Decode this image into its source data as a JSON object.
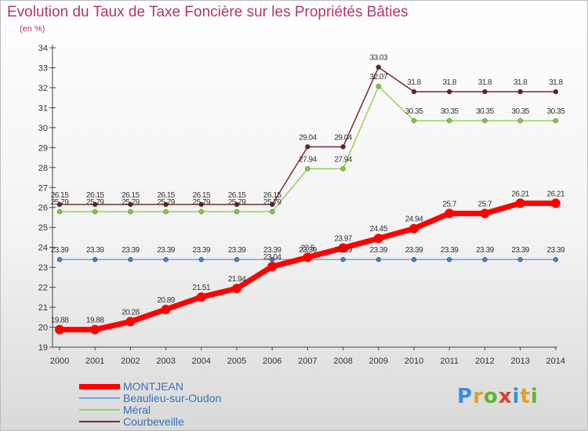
{
  "title": "Evolution du Taux de Taxe Foncière sur les Propriétés Bâties",
  "subtitle": "(en %)",
  "logo": {
    "text": "Proxiti",
    "colors": [
      "#3a8fd9",
      "#e0a020",
      "#5cb82e",
      "#e03b2e",
      "#3a8fd9",
      "#e0a020",
      "#5cb82e"
    ]
  },
  "chart_data": {
    "type": "line",
    "title": "Evolution du Taux de Taxe Foncière sur les Propriétés Bâties",
    "ylabel": "(en %)",
    "xlabel": "",
    "grid": false,
    "ylim": [
      19,
      34
    ],
    "yticks": [
      19,
      20,
      21,
      22,
      23,
      24,
      25,
      26,
      27,
      28,
      29,
      30,
      31,
      32,
      33,
      34
    ],
    "categories": [
      "2000",
      "2001",
      "2002",
      "2003",
      "2004",
      "2005",
      "2006",
      "2007",
      "2008",
      "2009",
      "2010",
      "2011",
      "2012",
      "2013",
      "2014"
    ],
    "series": [
      {
        "name": "Courbeveille",
        "color": "#7a2a2e",
        "marker": "#6a1f24",
        "values": [
          26.15,
          26.15,
          26.15,
          26.15,
          26.15,
          26.15,
          26.15,
          29.04,
          29.04,
          33.03,
          31.8,
          31.8,
          31.8,
          31.8,
          31.8
        ],
        "labels": [
          "26.15",
          "26.15",
          "26.15",
          "26.15",
          "26.15",
          "26.15",
          "26.15",
          "29.04",
          "29.04",
          "33.03",
          "31.8",
          "31.8",
          "31.8",
          "31.8",
          "31.8"
        ]
      },
      {
        "name": "Méral",
        "color": "#8fd45c",
        "marker": "#7acc3f",
        "values": [
          25.79,
          25.79,
          25.79,
          25.79,
          25.79,
          25.79,
          25.79,
          27.94,
          27.94,
          32.07,
          30.35,
          30.35,
          30.35,
          30.35,
          30.35
        ],
        "labels": [
          "25.79",
          "25.79",
          "25.79",
          "25.79",
          "25.79",
          "25.79",
          "25.79",
          "27.94",
          "27.94",
          "32.07",
          "30.35",
          "30.35",
          "30.35",
          "30.35",
          "30.35"
        ]
      },
      {
        "name": "Beaulieu-sur-Oudon",
        "color": "#6fa8d8",
        "marker": "#3f84c4",
        "values": [
          23.39,
          23.39,
          23.39,
          23.39,
          23.39,
          23.39,
          23.39,
          23.39,
          23.39,
          23.39,
          23.39,
          23.39,
          23.39,
          23.39,
          23.39
        ],
        "labels": [
          "23.39",
          "23.39",
          "23.39",
          "23.39",
          "23.39",
          "23.39",
          "23.39",
          "23.39",
          "23.39",
          "23.39",
          "23.39",
          "23.39",
          "23.39",
          "23.39",
          "23.39"
        ]
      },
      {
        "name": "MONTJEAN",
        "color": "#ff0000",
        "marker": "#ff0000",
        "values": [
          19.88,
          19.88,
          20.28,
          20.89,
          21.51,
          21.94,
          23.04,
          23.5,
          23.97,
          24.45,
          24.94,
          25.7,
          25.7,
          26.21,
          26.21
        ],
        "labels": [
          "19.88",
          "19.88",
          "20.28",
          "20.89",
          "21.51",
          "21.94",
          "23.04",
          "23.5",
          "23.97",
          "24.45",
          "24.94",
          "25.7",
          "25.7",
          "26.21",
          "26.21"
        ]
      }
    ],
    "legend": [
      "MONTJEAN",
      "Beaulieu-sur-Oudon",
      "Méral",
      "Courbeveille"
    ]
  }
}
